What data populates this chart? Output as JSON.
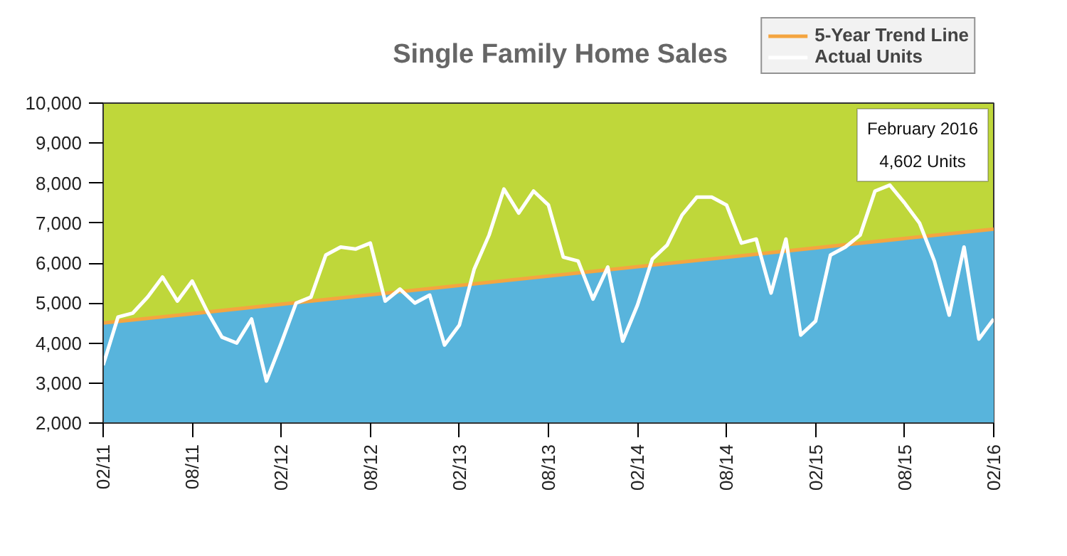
{
  "chart_data": {
    "type": "line",
    "title": "Single Family Home Sales",
    "x": [
      "2011-02",
      "2011-03",
      "2011-04",
      "2011-05",
      "2011-06",
      "2011-07",
      "2011-08",
      "2011-09",
      "2011-10",
      "2011-11",
      "2011-12",
      "2012-01",
      "2012-02",
      "2012-03",
      "2012-04",
      "2012-05",
      "2012-06",
      "2012-07",
      "2012-08",
      "2012-09",
      "2012-10",
      "2012-11",
      "2012-12",
      "2013-01",
      "2013-02",
      "2013-03",
      "2013-04",
      "2013-05",
      "2013-06",
      "2013-07",
      "2013-08",
      "2013-09",
      "2013-10",
      "2013-11",
      "2013-12",
      "2014-01",
      "2014-02",
      "2014-03",
      "2014-04",
      "2014-05",
      "2014-06",
      "2014-07",
      "2014-08",
      "2014-09",
      "2014-10",
      "2014-11",
      "2014-12",
      "2015-01",
      "2015-02",
      "2015-03",
      "2015-04",
      "2015-05",
      "2015-06",
      "2015-07",
      "2015-08",
      "2015-09",
      "2015-10",
      "2015-11",
      "2015-12",
      "2016-01",
      "2016-02"
    ],
    "series": [
      {
        "type": "area",
        "color": "#58b4dc",
        "x": [
          "2011-02",
          "2016-02"
        ],
        "values": [
          4500,
          6850
        ]
      },
      {
        "name": "5-Year Trend Line",
        "type": "line",
        "color": "#f4a540",
        "x": [
          "2011-02",
          "2016-02"
        ],
        "values": [
          4500,
          6850
        ]
      },
      {
        "name": "Actual Units",
        "color": "#ffffff",
        "values": [
          3450,
          4650,
          4750,
          5150,
          5650,
          5050,
          5550,
          4800,
          4150,
          4000,
          4600,
          3050,
          4000,
          5000,
          5150,
          6200,
          6400,
          6350,
          6500,
          5050,
          5350,
          5000,
          5200,
          3950,
          4450,
          5850,
          6700,
          7850,
          7250,
          7800,
          7450,
          6150,
          6050,
          5100,
          5900,
          4050,
          4950,
          6100,
          6450,
          7200,
          7650,
          7650,
          7450,
          6500,
          6600,
          5250,
          6600,
          4200,
          4550,
          6200,
          6400,
          6700,
          7800,
          7950,
          7500,
          7000,
          6050,
          4700,
          6400,
          4100,
          4602
        ]
      }
    ],
    "xlim": [
      "2011-02",
      "2016-02"
    ],
    "xticks": [
      {
        "value": "2011-02",
        "label": "02/11"
      },
      {
        "value": "2011-08",
        "label": "08/11"
      },
      {
        "value": "2012-02",
        "label": "02/12"
      },
      {
        "value": "2012-08",
        "label": "08/12"
      },
      {
        "value": "2013-02",
        "label": "02/13"
      },
      {
        "value": "2013-08",
        "label": "08/13"
      },
      {
        "value": "2014-02",
        "label": "02/14"
      },
      {
        "value": "2014-08",
        "label": "08/14"
      },
      {
        "value": "2015-02",
        "label": "02/15"
      },
      {
        "value": "2015-08",
        "label": "08/15"
      },
      {
        "value": "2016-02",
        "label": "02/16"
      }
    ],
    "ylim": [
      2000,
      10000
    ],
    "yticks": [
      {
        "value": 2000,
        "label": "2,000"
      },
      {
        "value": 3000,
        "label": "3,000"
      },
      {
        "value": 4000,
        "label": "4,000"
      },
      {
        "value": 5000,
        "label": "5,000"
      },
      {
        "value": 6000,
        "label": "6,000"
      },
      {
        "value": 7000,
        "label": "7,000"
      },
      {
        "value": 8000,
        "label": "8,000"
      },
      {
        "value": 9000,
        "label": "9,000"
      },
      {
        "value": 10000,
        "label": "10,000"
      }
    ],
    "annotations": [
      "February 2016",
      "4,602 Units"
    ],
    "legend": "top right",
    "grid": false,
    "marker": "none",
    "line_style": "solid"
  }
}
